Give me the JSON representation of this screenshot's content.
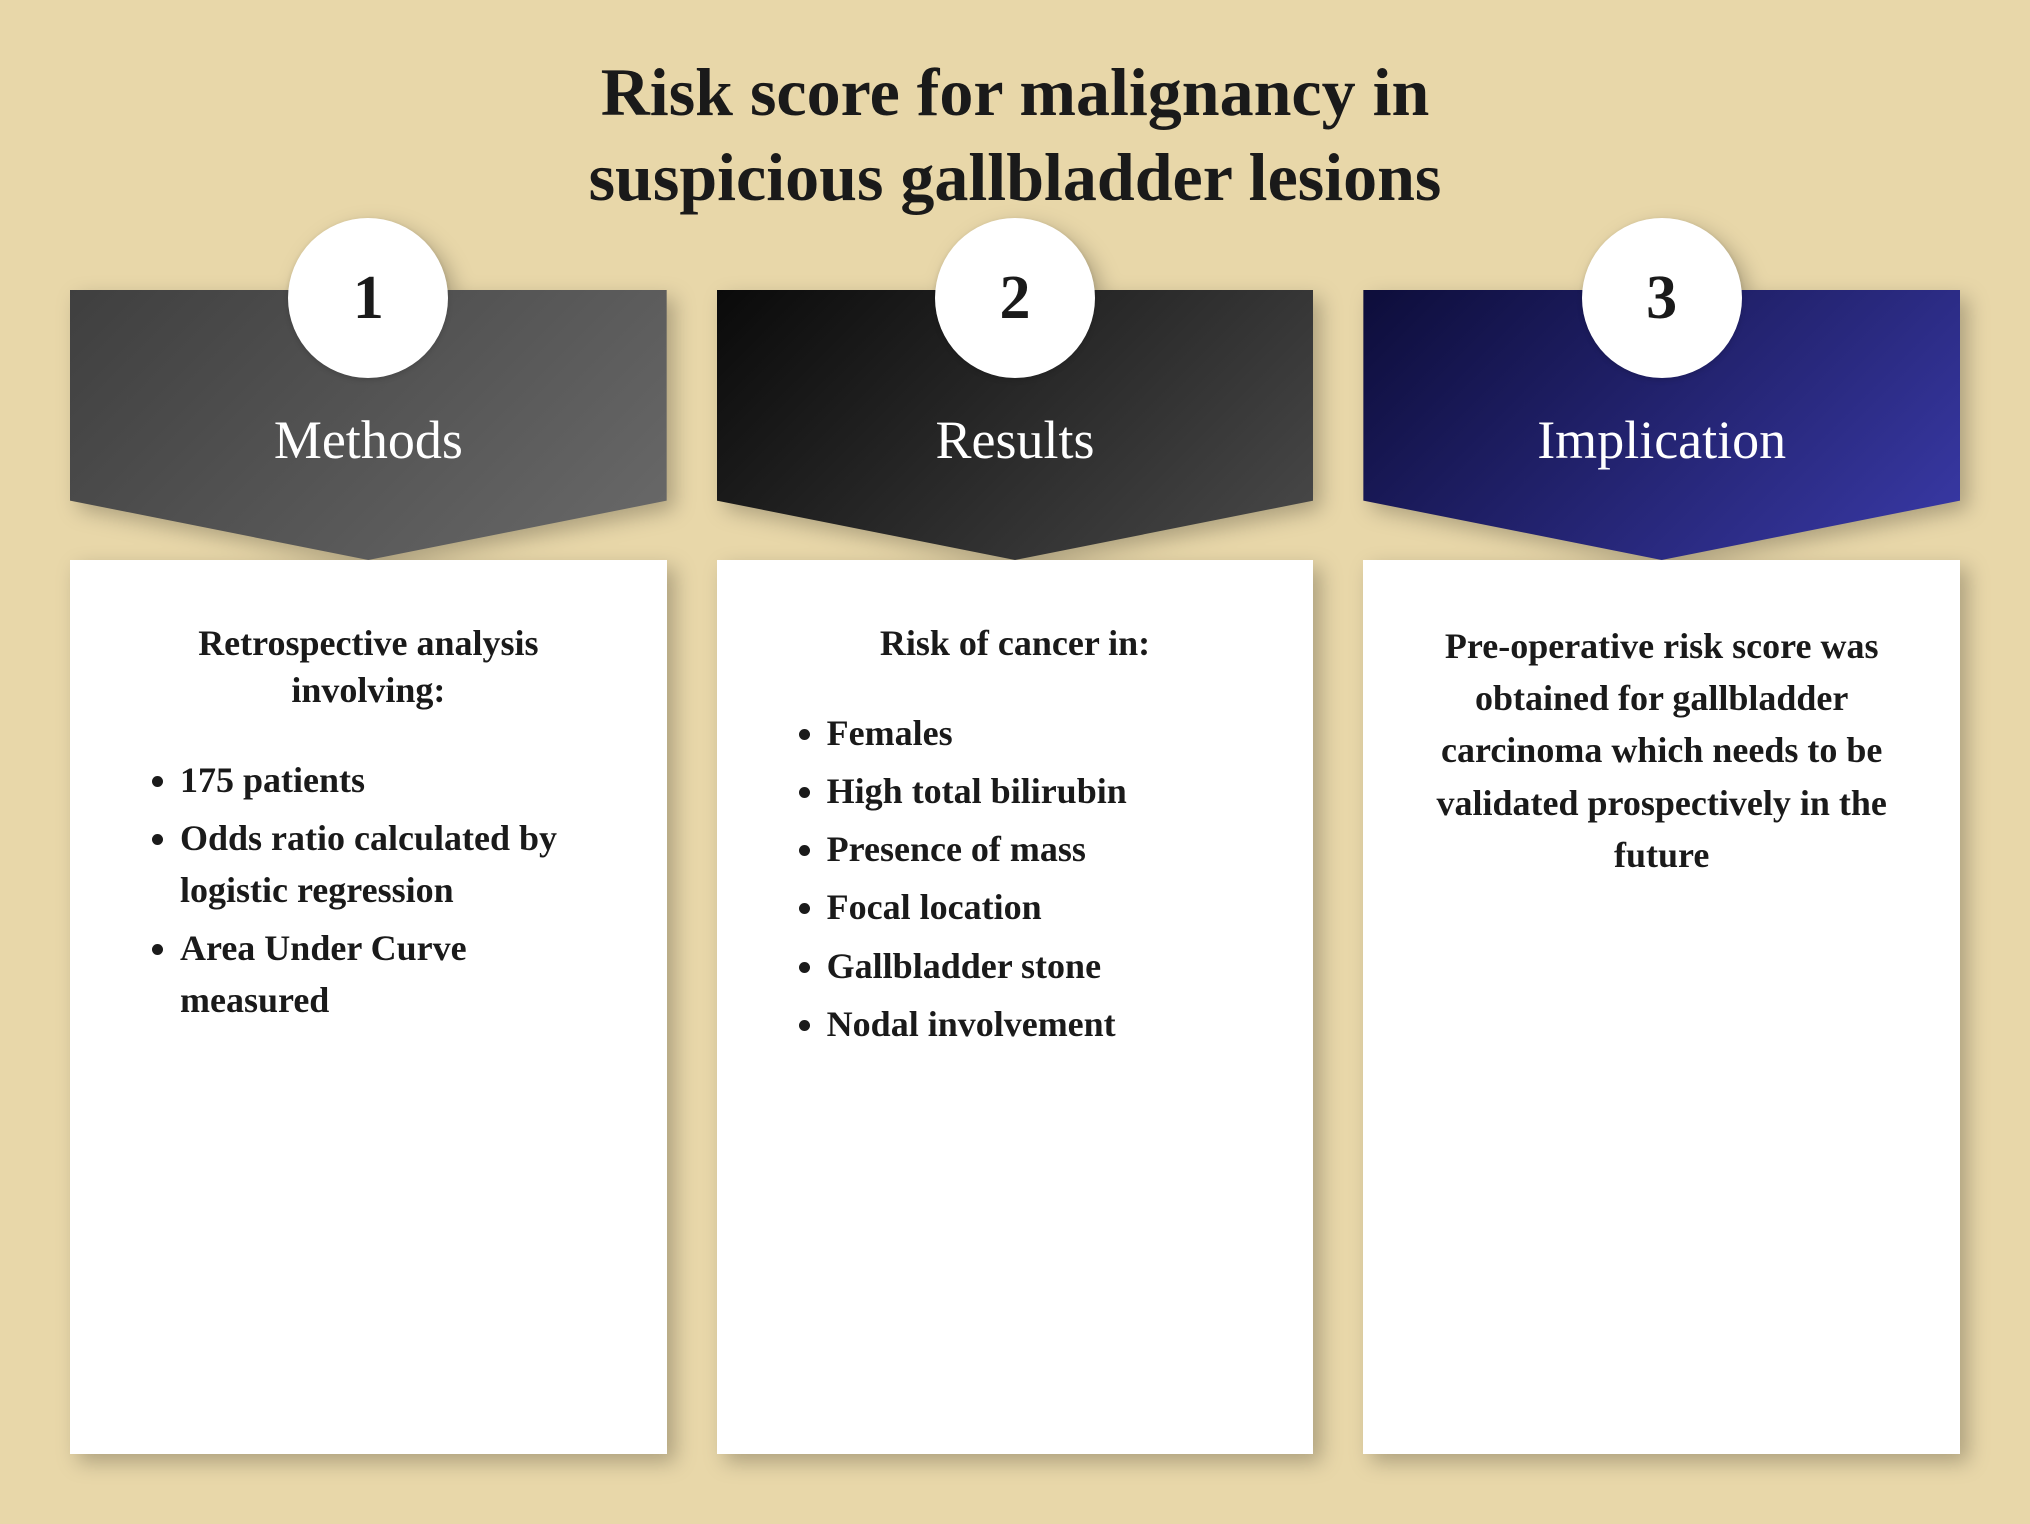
{
  "background_color": "#e8d7a9",
  "title": {
    "line1": "Risk score for malignancy in",
    "line2": "suspicious gallbladder lesions",
    "color": "#1a1a1a",
    "fontsize": 68
  },
  "card_number_style": {
    "bg": "#ffffff",
    "color": "#1a1a1a",
    "fontsize": 62,
    "size": 160
  },
  "header_title_style": {
    "color": "#ffffff",
    "fontsize": 54
  },
  "body_style": {
    "bg": "#ffffff",
    "color": "#1a1a1a",
    "heading_fontsize": 36,
    "list_fontsize": 36,
    "paragraph_fontsize": 36
  },
  "cards": [
    {
      "number": "1",
      "header_title": "Methods",
      "header_gradient": [
        "#3f3f3f",
        "#6a6a6a"
      ],
      "heading": "Retrospective analysis involving:",
      "type": "list",
      "items": [
        "175 patients",
        "Odds ratio calculated by logistic regression",
        "Area Under Curve measured"
      ]
    },
    {
      "number": "2",
      "header_title": "Results",
      "header_gradient": [
        "#0a0a0a",
        "#4a4a4a"
      ],
      "heading": "Risk of cancer in:",
      "type": "list",
      "items": [
        "Females",
        "High total bilirubin",
        "Presence of mass",
        "Focal location",
        "Gallbladder stone",
        "Nodal involvement"
      ]
    },
    {
      "number": "3",
      "header_title": "Implication",
      "header_gradient": [
        "#0d0d3a",
        "#3a3aa8"
      ],
      "heading": "",
      "type": "paragraph",
      "paragraph": "Pre-operative risk score was obtained for gallbladder carcinoma which needs to be validated prospectively in the future"
    }
  ]
}
